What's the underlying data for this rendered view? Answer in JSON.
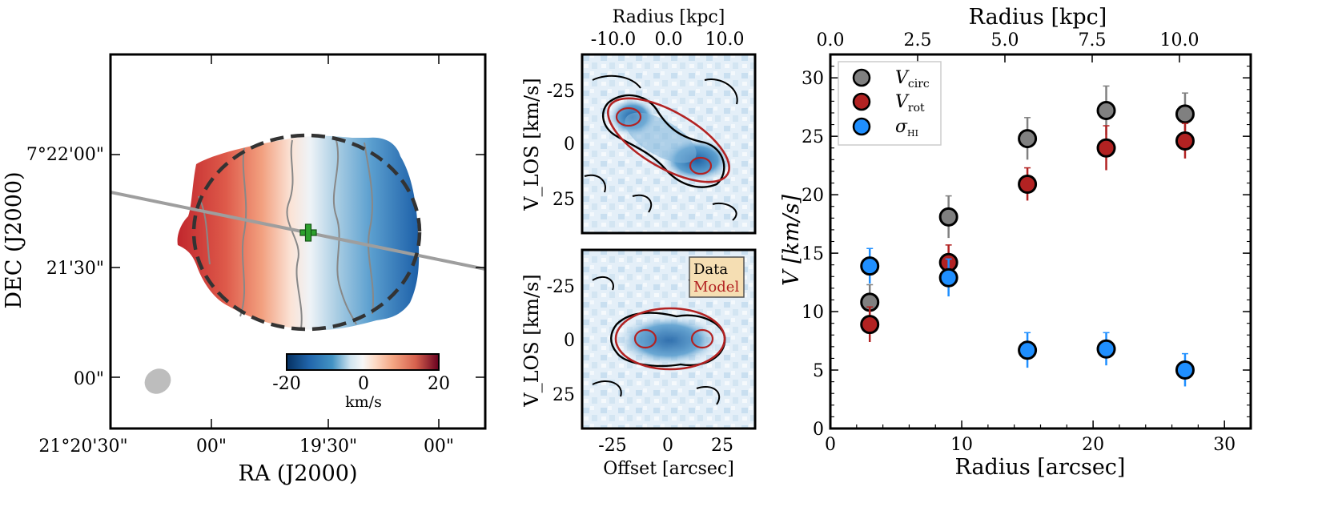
{
  "chart_data": [
    {
      "type": "heatmap",
      "panel": "velocity-map",
      "xlabel": "RA (J2000)",
      "ylabel": "DEC (J2000)",
      "x_ticks": [
        "21°20'30\"",
        "00\"",
        "19'30\"",
        "00\""
      ],
      "y_ticks": [
        "7°22'00\"",
        "21'30\"",
        "00\""
      ],
      "colorbar": {
        "ticks": [
          "-20",
          "0",
          "20"
        ],
        "label": "km/s",
        "range": [
          -20,
          20
        ],
        "colormap": "RdBu_r"
      },
      "markers": [
        "center-cross",
        "major-axis-line",
        "ellipse-outline",
        "beam"
      ],
      "colors": {
        "cross": "#2ca02c",
        "axis_line": "#9e9e9e",
        "ellipse": "#333333",
        "beam": "#bdbdbd"
      }
    },
    {
      "type": "heatmap",
      "panel": "pv-data",
      "top_axis_label": "Radius [kpc]",
      "top_ticks": [
        "-10.0",
        "0.0",
        "10.0"
      ],
      "ylabel": "V_LOS [km/s]",
      "y_ticks": [
        "-25",
        "0",
        "25"
      ]
    },
    {
      "type": "heatmap",
      "panel": "pv-model",
      "xlabel": "Offset [arcsec]",
      "x_ticks": [
        "-25",
        "0",
        "25"
      ],
      "ylabel": "V_LOS [km/s]",
      "y_ticks": [
        "-25",
        "0",
        "25"
      ],
      "legend": [
        {
          "name": "Data",
          "color": "#000000"
        },
        {
          "name": "Model",
          "color": "#b22222"
        }
      ]
    },
    {
      "type": "scatter",
      "panel": "rotation-curve",
      "xlabel": "Radius [arcsec]",
      "ylabel": "V [km/s]",
      "top_axis_label": "Radius [kpc]",
      "top_ticks": [
        "0.0",
        "2.5",
        "5.0",
        "7.5",
        "10.0"
      ],
      "xlim": [
        0,
        32
      ],
      "ylim": [
        0,
        32
      ],
      "x_ticks": [
        0,
        10,
        20,
        30
      ],
      "y_ticks": [
        0,
        5,
        10,
        15,
        20,
        25,
        30
      ],
      "legend_position": "top-left",
      "series": [
        {
          "name": "V_circ",
          "label_main": "V",
          "label_sub": "circ",
          "color": "#808080",
          "err_color": "#808080",
          "points": [
            {
              "x": 3,
              "y": 10.8,
              "err": 1.5
            },
            {
              "x": 9,
              "y": 18.1,
              "err": 1.8
            },
            {
              "x": 15,
              "y": 24.8,
              "err": 1.8
            },
            {
              "x": 21,
              "y": 27.2,
              "err": 2.1
            },
            {
              "x": 27,
              "y": 26.9,
              "err": 1.8
            }
          ]
        },
        {
          "name": "V_rot",
          "label_main": "V",
          "label_sub": "rot",
          "color": "#b22222",
          "err_color": "#b22222",
          "points": [
            {
              "x": 3,
              "y": 8.9,
              "err": 1.5
            },
            {
              "x": 9,
              "y": 14.2,
              "err": 1.5
            },
            {
              "x": 15,
              "y": 20.9,
              "err": 1.4
            },
            {
              "x": 21,
              "y": 24.0,
              "err": 1.9
            },
            {
              "x": 27,
              "y": 24.6,
              "err": 1.5
            }
          ]
        },
        {
          "name": "sigma_HI",
          "label_main": "σ",
          "label_sub": "HI",
          "color": "#1f8fff",
          "err_color": "#1f8fff",
          "points": [
            {
              "x": 3,
              "y": 13.9,
              "err": 1.5
            },
            {
              "x": 9,
              "y": 12.9,
              "err": 1.6
            },
            {
              "x": 15,
              "y": 6.7,
              "err": 1.5
            },
            {
              "x": 21,
              "y": 6.8,
              "err": 1.4
            },
            {
              "x": 27,
              "y": 5.0,
              "err": 1.4
            }
          ]
        }
      ]
    }
  ]
}
